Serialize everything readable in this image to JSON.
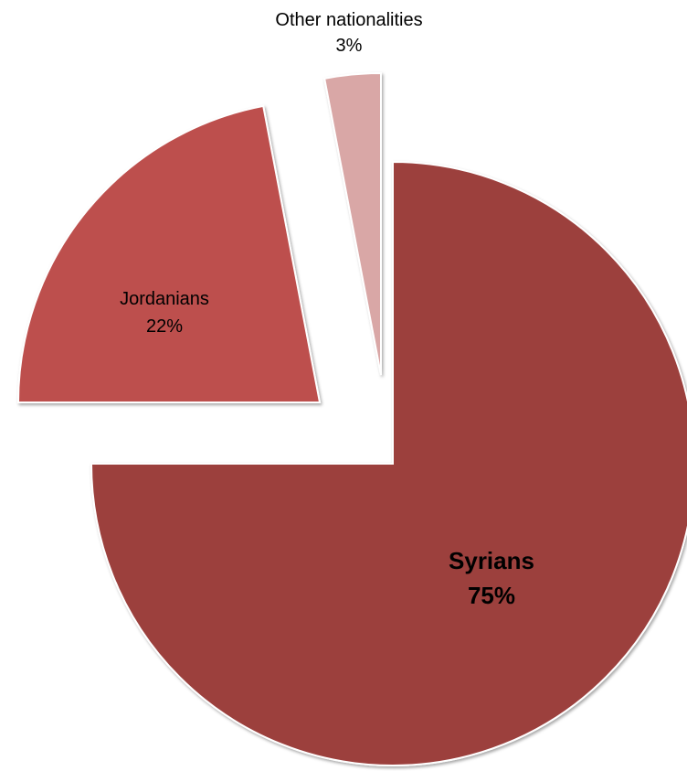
{
  "chart_data": {
    "type": "pie",
    "exploded": true,
    "start_angle_deg": 0,
    "direction": "clockwise",
    "slices": [
      {
        "label": "Syrians",
        "value": 75,
        "value_label": "75%",
        "color": "#9c3f3d",
        "label_style": "bold"
      },
      {
        "label": "Jordanians",
        "value": 22,
        "value_label": "22%",
        "color": "#bd504d",
        "label_style": "normal"
      },
      {
        "label": "Other nationalities",
        "value": 3,
        "value_label": "3%",
        "color": "#d9a7a6",
        "label_style": "normal"
      }
    ]
  }
}
